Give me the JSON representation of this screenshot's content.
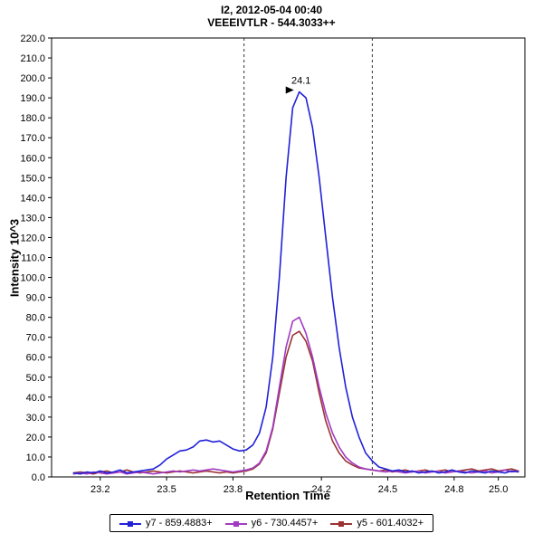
{
  "title": {
    "line1": "I2, 2012-05-04 00:40",
    "line2": "VEEEIVTLR - 544.3033++"
  },
  "axes": {
    "x_label": "Retention Time",
    "y_label": "Intensity 10^3"
  },
  "legend": {
    "items": [
      {
        "label": "y7 - 859.4883+",
        "color": "#2121d8"
      },
      {
        "label": "y6 - 730.4457+",
        "color": "#a23bc4"
      },
      {
        "label": "y5 - 601.4032+",
        "color": "#993333"
      }
    ]
  },
  "chart_data": {
    "type": "line",
    "title": "I2, 2012-05-04 00:40 — VEEEIVTLR - 544.3033++",
    "xlabel": "Retention Time",
    "ylabel": "Intensity 10^3",
    "xlim": [
      22.98,
      25.12
    ],
    "ylim": [
      0,
      220
    ],
    "y_tick_step": 10,
    "x_ticks": [
      23.2,
      23.5,
      23.8,
      24.2,
      24.5,
      24.8,
      25.0
    ],
    "grid": false,
    "legend_position": "bottom",
    "boundaries": [
      23.85,
      24.43
    ],
    "annotation": {
      "text": "24.1",
      "x": 24.1,
      "y": 193
    },
    "x": [
      23.08,
      23.11,
      23.14,
      23.17,
      23.2,
      23.23,
      23.26,
      23.29,
      23.32,
      23.35,
      23.38,
      23.41,
      23.44,
      23.47,
      23.5,
      23.53,
      23.56,
      23.59,
      23.62,
      23.65,
      23.68,
      23.71,
      23.74,
      23.77,
      23.8,
      23.83,
      23.86,
      23.89,
      23.92,
      23.95,
      23.98,
      24.01,
      24.04,
      24.07,
      24.1,
      24.13,
      24.16,
      24.19,
      24.22,
      24.25,
      24.28,
      24.31,
      24.34,
      24.37,
      24.4,
      24.43,
      24.46,
      24.49,
      24.52,
      24.55,
      24.58,
      24.61,
      24.64,
      24.67,
      24.7,
      24.73,
      24.76,
      24.79,
      24.82,
      24.85,
      24.88,
      24.91,
      24.94,
      24.97,
      25.0,
      25.03,
      25.06,
      25.09
    ],
    "series": [
      {
        "name": "y7 - 859.4883+",
        "color": "#2121d8",
        "values": [
          2.0,
          1.5,
          2.5,
          2.0,
          3.0,
          2.0,
          2.5,
          3.5,
          2.0,
          2.5,
          3.0,
          3.5,
          4.0,
          6.0,
          9.0,
          11.0,
          13.0,
          13.5,
          15.0,
          18.0,
          18.5,
          17.5,
          18.0,
          16.0,
          14.0,
          13.0,
          13.5,
          16.0,
          22.0,
          35.0,
          60.0,
          100.0,
          150.0,
          185.0,
          193.0,
          190.0,
          175.0,
          150.0,
          120.0,
          90.0,
          65.0,
          45.0,
          30.0,
          20.0,
          12.0,
          8.0,
          5.0,
          4.0,
          3.0,
          3.5,
          2.5,
          3.0,
          2.0,
          2.5,
          3.0,
          2.0,
          2.5,
          3.5,
          2.5,
          2.0,
          3.0,
          2.5,
          2.0,
          3.0,
          2.5,
          2.0,
          3.0,
          2.5
        ]
      },
      {
        "name": "y6 - 730.4457+",
        "color": "#a23bc4",
        "values": [
          1.5,
          2.0,
          1.5,
          2.5,
          2.0,
          1.5,
          2.0,
          2.5,
          1.5,
          2.0,
          2.5,
          2.0,
          1.5,
          2.0,
          2.5,
          3.0,
          2.5,
          3.0,
          3.5,
          3.0,
          3.5,
          4.0,
          3.5,
          3.0,
          2.5,
          3.0,
          3.5,
          4.5,
          7.0,
          13.0,
          25.0,
          45.0,
          65.0,
          78.0,
          80.0,
          72.0,
          60.0,
          45.0,
          32.0,
          22.0,
          15.0,
          10.0,
          7.0,
          5.0,
          4.0,
          3.5,
          3.0,
          2.5,
          3.0,
          2.5,
          2.0,
          2.5,
          3.0,
          2.0,
          2.5,
          3.0,
          2.0,
          2.5,
          3.0,
          2.5,
          2.0,
          2.5,
          3.0,
          2.0,
          2.5,
          3.5,
          2.5,
          3.0
        ]
      },
      {
        "name": "y5 - 601.4032+",
        "color": "#993333",
        "values": [
          2.0,
          2.5,
          2.0,
          1.5,
          2.5,
          3.0,
          2.0,
          2.5,
          3.5,
          2.5,
          2.0,
          2.5,
          3.0,
          2.5,
          2.0,
          2.5,
          3.0,
          2.5,
          2.0,
          2.5,
          3.0,
          2.5,
          2.0,
          2.5,
          2.0,
          2.5,
          3.0,
          4.0,
          6.5,
          12.0,
          24.0,
          42.0,
          60.0,
          71.0,
          73.0,
          68.0,
          58.0,
          42.0,
          28.0,
          18.0,
          12.0,
          8.0,
          6.0,
          4.5,
          4.0,
          3.5,
          3.0,
          3.5,
          2.5,
          3.0,
          3.5,
          2.5,
          3.0,
          3.5,
          2.5,
          3.0,
          3.5,
          2.5,
          3.0,
          3.5,
          4.0,
          3.0,
          3.5,
          4.0,
          3.0,
          3.5,
          4.0,
          3.0
        ]
      }
    ]
  }
}
